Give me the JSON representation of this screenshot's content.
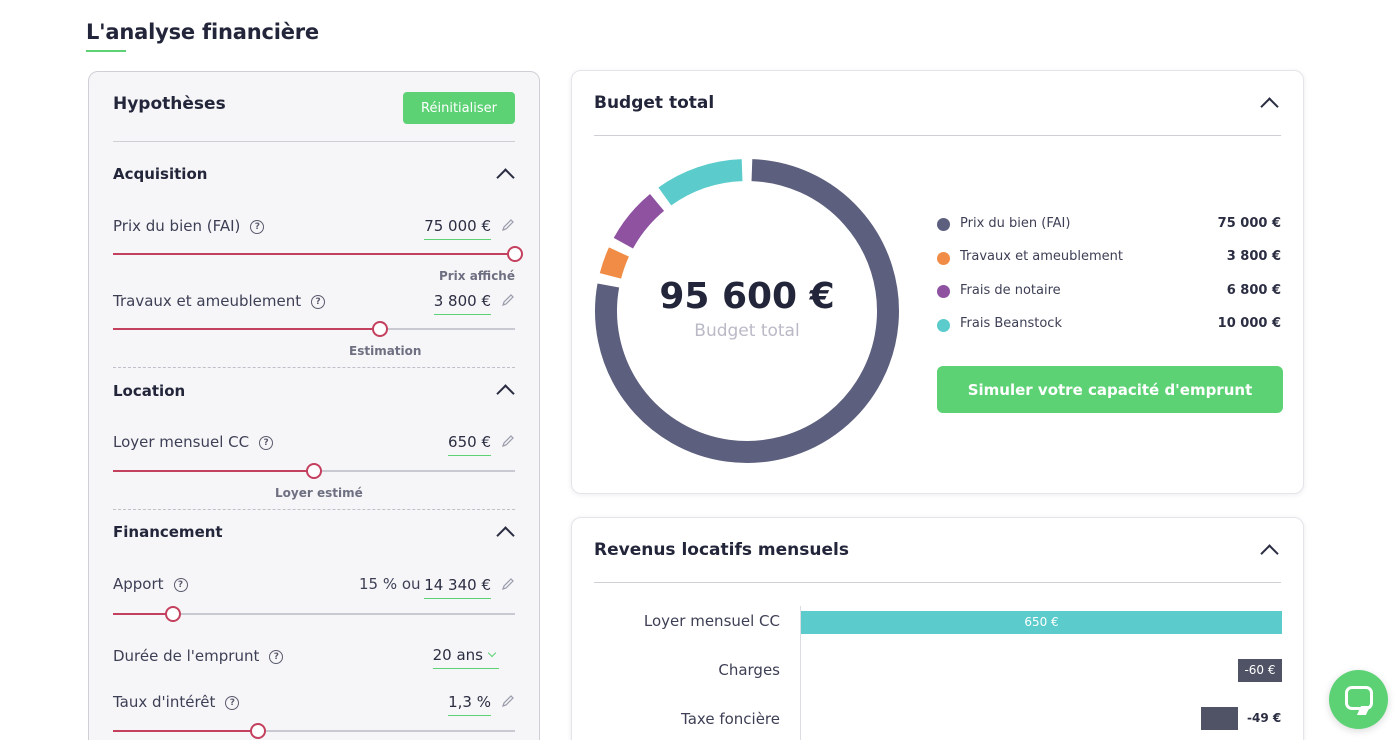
{
  "page": {
    "title": "L'analyse financière"
  },
  "hypotheses": {
    "title": "Hypothèses",
    "reset_label": "Réinitialiser",
    "acquisition": {
      "title": "Acquisition",
      "prix": {
        "label": "Prix du bien (FAI)",
        "value": "75 000 €",
        "note": "Prix affiché",
        "level": 1.0
      },
      "travaux": {
        "label": "Travaux et ameublement",
        "value": "3 800 €",
        "note": "Estimation",
        "level": 0.66
      }
    },
    "location": {
      "title": "Location",
      "loyer": {
        "label": "Loyer mensuel CC",
        "value": "650 €",
        "note": "Loyer estimé",
        "level": 0.5
      }
    },
    "financement": {
      "title": "Financement",
      "apport": {
        "label": "Apport",
        "prefix": "15 % ou",
        "value": "14 340 €",
        "level": 0.15
      },
      "duree": {
        "label": "Durée de l'emprunt",
        "value": "20 ans"
      },
      "taux": {
        "label": "Taux d'intérêt",
        "value": "1,3 %",
        "level": 0.36
      }
    }
  },
  "budget": {
    "title": "Budget total",
    "total": "95 600 €",
    "subtitle": "Budget total",
    "items": [
      {
        "label": "Prix du bien (FAI)",
        "value": "75 000 €",
        "color": "#5c5f7d"
      },
      {
        "label": "Travaux et ameublement",
        "value": "3 800 €",
        "color": "#f08c45"
      },
      {
        "label": "Frais de notaire",
        "value": "6 800 €",
        "color": "#8e52a1"
      },
      {
        "label": "Frais Beanstock",
        "value": "10 000 €",
        "color": "#5bcbcc"
      }
    ],
    "cta_label": "Simuler votre capacité d'emprunt"
  },
  "revenus": {
    "title": "Revenus locatifs mensuels",
    "rows": [
      {
        "label": "Loyer mensuel CC",
        "value": "650 €",
        "color": "#5bcbcc"
      },
      {
        "label": "Charges",
        "value": "-60 €",
        "color": "#505366"
      },
      {
        "label": "Taxe foncière",
        "value": "-49 €",
        "color": "#505366"
      }
    ]
  },
  "chat": {
    "icon": "chat-bubble-icon",
    "color": "#5cd275"
  }
}
